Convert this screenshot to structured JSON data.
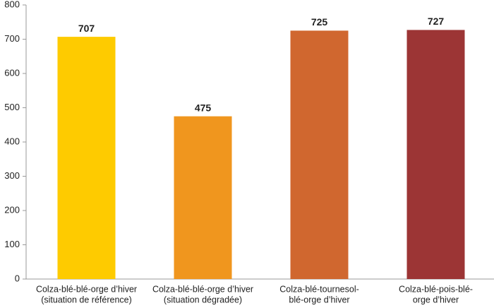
{
  "chart_data": {
    "type": "bar",
    "categories": [
      [
        "Colza-blé-blé-orge d’hiver",
        "(situation de référence)"
      ],
      [
        "Colza-blé-blé-orge d’hiver",
        "(situation dégradée)"
      ],
      [
        "Colza-blé-tournesol-",
        "blé-orge d’hiver"
      ],
      [
        "Colza-blé-pois-blé-",
        "orge d’hiver"
      ]
    ],
    "values": [
      707,
      475,
      725,
      727
    ],
    "colors": [
      "#fecb00",
      "#f0961e",
      "#d0672f",
      "#9c3535"
    ],
    "ylim": [
      0,
      800
    ],
    "yticks": [
      0,
      100,
      200,
      300,
      400,
      500,
      600,
      700,
      800
    ],
    "grid": false
  }
}
